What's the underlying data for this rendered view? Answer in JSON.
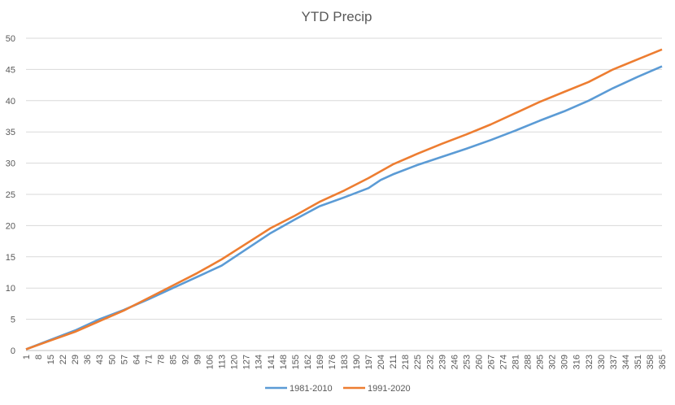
{
  "chart_data": {
    "type": "line",
    "title": "YTD Precip",
    "xlabel": "",
    "ylabel": "",
    "x_range": [
      1,
      365
    ],
    "x_ticks": [
      1,
      8,
      15,
      22,
      29,
      36,
      43,
      50,
      57,
      64,
      71,
      78,
      85,
      92,
      99,
      106,
      113,
      120,
      127,
      134,
      141,
      148,
      155,
      162,
      169,
      176,
      183,
      190,
      197,
      204,
      211,
      218,
      225,
      232,
      239,
      246,
      253,
      260,
      267,
      274,
      281,
      288,
      295,
      302,
      309,
      316,
      323,
      330,
      337,
      344,
      351,
      358,
      365
    ],
    "ylim": [
      0,
      50
    ],
    "y_ticks": [
      0,
      5,
      10,
      15,
      20,
      25,
      30,
      35,
      40,
      45,
      50
    ],
    "grid": true,
    "legend_position": "bottom",
    "series": [
      {
        "name": "1981-2010",
        "color": "#5b9bd5",
        "points": [
          [
            1,
            0.2
          ],
          [
            15,
            1.7
          ],
          [
            29,
            3.2
          ],
          [
            43,
            5.0
          ],
          [
            57,
            6.5
          ],
          [
            71,
            8.2
          ],
          [
            85,
            10.0
          ],
          [
            99,
            11.8
          ],
          [
            113,
            13.6
          ],
          [
            127,
            16.2
          ],
          [
            141,
            18.8
          ],
          [
            155,
            21.0
          ],
          [
            169,
            23.1
          ],
          [
            183,
            24.5
          ],
          [
            197,
            26.0
          ],
          [
            204,
            27.3
          ],
          [
            211,
            28.2
          ],
          [
            225,
            29.7
          ],
          [
            239,
            31.0
          ],
          [
            253,
            32.3
          ],
          [
            267,
            33.7
          ],
          [
            281,
            35.2
          ],
          [
            295,
            36.8
          ],
          [
            309,
            38.3
          ],
          [
            323,
            40.0
          ],
          [
            337,
            42.0
          ],
          [
            351,
            43.8
          ],
          [
            365,
            45.5
          ]
        ]
      },
      {
        "name": "1991-2020",
        "color": "#ed7d31",
        "points": [
          [
            1,
            0.2
          ],
          [
            15,
            1.6
          ],
          [
            29,
            3.0
          ],
          [
            43,
            4.7
          ],
          [
            57,
            6.4
          ],
          [
            71,
            8.4
          ],
          [
            85,
            10.4
          ],
          [
            99,
            12.4
          ],
          [
            113,
            14.6
          ],
          [
            127,
            17.1
          ],
          [
            141,
            19.6
          ],
          [
            155,
            21.6
          ],
          [
            169,
            23.8
          ],
          [
            183,
            25.6
          ],
          [
            197,
            27.6
          ],
          [
            211,
            29.8
          ],
          [
            225,
            31.5
          ],
          [
            239,
            33.1
          ],
          [
            253,
            34.6
          ],
          [
            267,
            36.2
          ],
          [
            281,
            38.0
          ],
          [
            295,
            39.8
          ],
          [
            309,
            41.4
          ],
          [
            323,
            43.0
          ],
          [
            337,
            45.0
          ],
          [
            351,
            46.6
          ],
          [
            365,
            48.2
          ]
        ]
      }
    ]
  }
}
